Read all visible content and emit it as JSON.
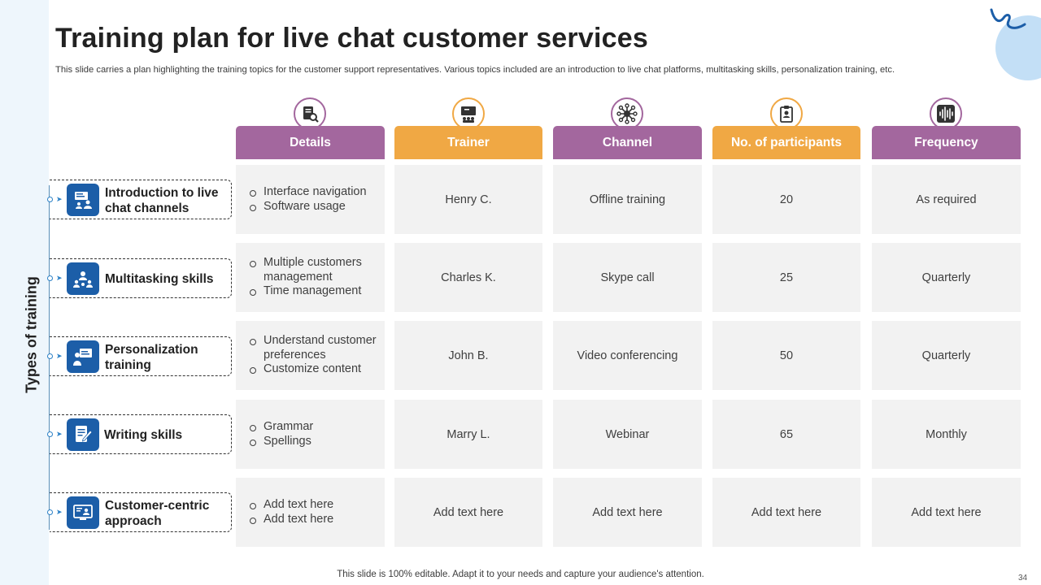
{
  "slide": {
    "title": "Training plan for live chat customer services",
    "subtitle": "This slide carries a plan highlighting the training topics for the customer support representatives. Various topics included are an introduction to live chat platforms, multitasking skills, personalization training, etc.",
    "side_label": "Types of training",
    "footer": "This slide is 100% editable. Adapt it to your needs and capture your audience's attention.",
    "page_number": "34"
  },
  "columns": [
    {
      "label": "Details",
      "color": "#a3679e",
      "icon": "magnifier-document-icon"
    },
    {
      "label": "Trainer",
      "color": "#f0a844",
      "icon": "presenter-icon"
    },
    {
      "label": "Channel",
      "color": "#a3679e",
      "icon": "network-hub-icon"
    },
    {
      "label": "No. of participants",
      "color": "#f0a844",
      "icon": "id-badge-icon"
    },
    {
      "label": "Frequency",
      "color": "#a3679e",
      "icon": "sound-wave-icon"
    }
  ],
  "rows": [
    {
      "type": "Introduction to live chat channels",
      "icon": "chat-presentation-icon",
      "details": [
        "Interface navigation",
        "Software usage"
      ],
      "trainer": "Henry C.",
      "channel": "Offline training",
      "participants": "20",
      "frequency": "As required"
    },
    {
      "type": "Multitasking skills",
      "icon": "team-network-icon",
      "details": [
        "Multiple customers management",
        "Time management"
      ],
      "trainer": "Charles K.",
      "channel": "Skype call",
      "participants": "25",
      "frequency": "Quarterly"
    },
    {
      "type": "Personalization training",
      "icon": "user-board-icon",
      "details": [
        "Understand customer preferences",
        "Customize content"
      ],
      "trainer": "John B.",
      "channel": "Video conferencing",
      "participants": "50",
      "frequency": "Quarterly"
    },
    {
      "type": "Writing skills",
      "icon": "writing-document-icon",
      "details": [
        "Grammar",
        "Spellings"
      ],
      "trainer": "Marry L.",
      "channel": "Webinar",
      "participants": "65",
      "frequency": "Monthly"
    },
    {
      "type": "Customer-centric approach",
      "icon": "customer-screen-icon",
      "details": [
        "Add text here",
        "Add text here"
      ],
      "trainer": "Add text here",
      "channel": "Add text here",
      "participants": "Add text here",
      "frequency": "Add text here"
    }
  ]
}
